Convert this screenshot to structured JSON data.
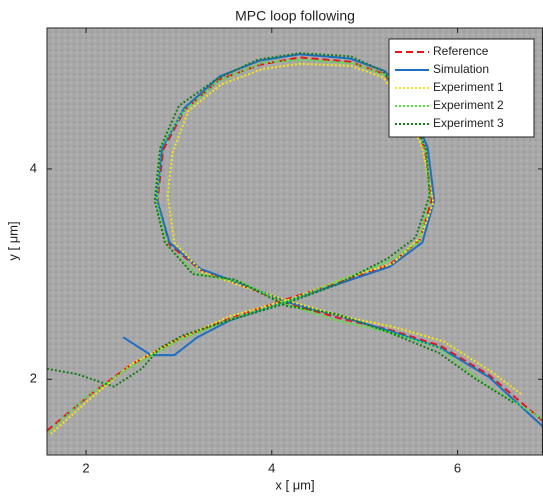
{
  "chart_data": {
    "type": "line",
    "title": "MPC loop following",
    "xlabel": "x [ μm]",
    "ylabel": "y [ μm]",
    "xlim": [
      1.58,
      6.92
    ],
    "ylim": [
      1.28,
      5.34
    ],
    "xticks": [
      2,
      4,
      6
    ],
    "yticks": [
      2,
      4
    ],
    "grid": false,
    "legend": "top-right",
    "series": [
      {
        "name": "Reference",
        "color": "#e8141c",
        "style": "dashed",
        "x": [
          1.58,
          2.04,
          2.47,
          3.01,
          3.55,
          4.19,
          4.73,
          5.27,
          5.59,
          5.72,
          5.65,
          5.48,
          5.22,
          4.84,
          4.3,
          3.87,
          3.44,
          3.06,
          2.83,
          2.77,
          2.9,
          3.23,
          3.66,
          4.19,
          4.73,
          5.27,
          5.81,
          6.34,
          6.91
        ],
        "values": [
          1.51,
          1.85,
          2.13,
          2.39,
          2.58,
          2.77,
          2.92,
          3.09,
          3.32,
          3.7,
          4.18,
          4.56,
          4.9,
          5.02,
          5.06,
          4.99,
          4.85,
          4.56,
          4.18,
          3.7,
          3.28,
          3.04,
          2.9,
          2.72,
          2.58,
          2.47,
          2.32,
          2.04,
          1.61
        ]
      },
      {
        "name": "Simulation",
        "color": "#1f6fc0",
        "style": "solid",
        "x": [
          2.4,
          2.7,
          2.95,
          3.2,
          3.55,
          4.19,
          4.73,
          5.27,
          5.62,
          5.75,
          5.68,
          5.5,
          5.22,
          4.84,
          4.3,
          3.87,
          3.44,
          3.06,
          2.82,
          2.76,
          2.9,
          3.23,
          3.66,
          4.19,
          4.73,
          5.27,
          5.81,
          6.34,
          6.92
        ],
        "values": [
          2.4,
          2.23,
          2.23,
          2.4,
          2.56,
          2.75,
          2.91,
          3.07,
          3.3,
          3.7,
          4.2,
          4.58,
          4.93,
          5.05,
          5.09,
          5.03,
          4.88,
          4.58,
          4.2,
          3.72,
          3.3,
          3.05,
          2.91,
          2.73,
          2.6,
          2.46,
          2.3,
          2.02,
          1.55
        ]
      },
      {
        "name": "Experiment 1",
        "color": "#f5e613",
        "style": "dotted",
        "x": [
          1.62,
          2.05,
          2.5,
          3.0,
          3.55,
          4.2,
          4.75,
          5.3,
          5.6,
          5.74,
          5.62,
          5.45,
          5.2,
          4.85,
          4.3,
          3.9,
          3.45,
          3.1,
          2.93,
          2.88,
          2.95,
          3.25,
          3.7,
          4.2,
          4.75,
          5.3,
          5.85,
          6.35,
          6.7
        ],
        "values": [
          1.48,
          1.82,
          2.15,
          2.38,
          2.6,
          2.76,
          2.95,
          3.1,
          3.35,
          3.68,
          4.2,
          4.55,
          4.87,
          4.98,
          5.0,
          4.95,
          4.8,
          4.55,
          4.15,
          3.75,
          3.3,
          3.02,
          2.88,
          2.74,
          2.6,
          2.5,
          2.36,
          2.08,
          1.85
        ]
      },
      {
        "name": "Experiment 2",
        "color": "#4ce632",
        "style": "dotted",
        "x": [
          1.6,
          2.0,
          2.45,
          3.0,
          3.55,
          4.2,
          4.7,
          5.25,
          5.58,
          5.7,
          5.66,
          5.5,
          5.25,
          4.9,
          4.35,
          3.9,
          3.42,
          3.05,
          2.8,
          2.76,
          2.88,
          3.2,
          3.68,
          4.2,
          4.7,
          5.25,
          5.8,
          6.3,
          6.92
        ],
        "values": [
          1.5,
          1.83,
          2.1,
          2.37,
          2.57,
          2.75,
          2.93,
          3.12,
          3.3,
          3.72,
          4.15,
          4.6,
          4.88,
          5.0,
          5.04,
          5.01,
          4.83,
          4.55,
          4.2,
          3.68,
          3.26,
          3.0,
          2.92,
          2.7,
          2.56,
          2.45,
          2.3,
          1.95,
          1.62
        ]
      },
      {
        "name": "Experiment 3",
        "color": "#1a7a1a",
        "style": "dotted",
        "x": [
          1.58,
          1.9,
          2.3,
          2.6,
          2.8,
          3.05,
          3.5,
          4.15,
          4.7,
          5.25,
          5.55,
          5.7,
          5.66,
          5.45,
          5.2,
          4.85,
          4.3,
          3.85,
          3.4,
          3.0,
          2.8,
          2.74,
          2.85,
          3.15,
          3.6,
          4.15,
          4.7,
          5.25,
          5.8,
          6.2,
          6.6
        ],
        "values": [
          2.1,
          2.05,
          1.93,
          2.1,
          2.3,
          2.42,
          2.55,
          2.72,
          2.9,
          3.15,
          3.35,
          3.75,
          4.2,
          4.6,
          4.93,
          5.07,
          5.1,
          5.04,
          4.85,
          4.6,
          4.2,
          3.7,
          3.3,
          3.0,
          2.95,
          2.7,
          2.62,
          2.45,
          2.25,
          2.0,
          1.78
        ]
      }
    ]
  }
}
